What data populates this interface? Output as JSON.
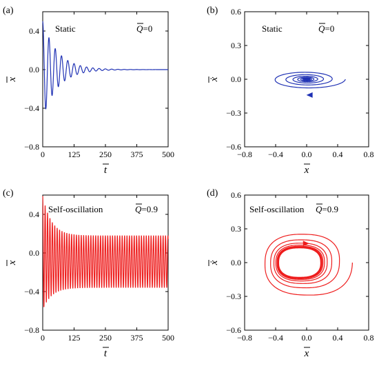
{
  "chart_data": [
    {
      "panel": "(a)",
      "type": "line",
      "label_left": "Static",
      "label_right": "=0",
      "label_right_symbol": "Q",
      "xlabel": "t",
      "ylabel": "x",
      "xlim": [
        0,
        500
      ],
      "ylim": [
        -0.8,
        0.6
      ],
      "xticks": [
        0,
        125,
        250,
        375,
        500
      ],
      "yticks": [
        -0.8,
        -0.4,
        0.0,
        0.4
      ],
      "xtick_labels": [
        "0",
        "125",
        "250",
        "375",
        "500"
      ],
      "ytick_labels": [
        "−0.8",
        "−0.4",
        "0.0",
        "0.4"
      ],
      "color": "#1f31b4",
      "series": [
        {
          "model": "damped-oscillation",
          "x0": 0.5,
          "period": 25,
          "decay_time": 60,
          "t_range": [
            0,
            500
          ]
        }
      ]
    },
    {
      "panel": "(b)",
      "type": "line",
      "label_left": "Static",
      "label_right": "=0",
      "label_right_symbol": "Q",
      "xlabel": "x",
      "ylabel": "ẋ",
      "xlim": [
        -0.8,
        0.8
      ],
      "ylim": [
        -0.6,
        0.6
      ],
      "xticks": [
        -0.8,
        -0.4,
        0.0,
        0.4,
        0.8
      ],
      "yticks": [
        -0.6,
        -0.3,
        0.0,
        0.3,
        0.6
      ],
      "xtick_labels": [
        "−0.8",
        "−0.4",
        "0.0",
        "0.4",
        "0.8"
      ],
      "ytick_labels": [
        "−0.6",
        "−0.3",
        "0.0",
        "0.3",
        "0.6"
      ],
      "color": "#1f31b4",
      "series": [
        {
          "model": "spiral-to-origin",
          "x0": 0.5,
          "v_scale": 0.17,
          "period": 25,
          "decay_time": 60
        }
      ]
    },
    {
      "panel": "(c)",
      "type": "line",
      "label_left": "Self-oscillation",
      "label_right": "=0.9",
      "label_right_symbol": "Q",
      "xlabel": "t",
      "ylabel": "x",
      "xlim": [
        0,
        500
      ],
      "ylim": [
        -0.8,
        0.6
      ],
      "xticks": [
        0,
        125,
        250,
        375,
        500
      ],
      "yticks": [
        -0.8,
        -0.4,
        0.0,
        0.4
      ],
      "xtick_labels": [
        "0",
        "125",
        "250",
        "375",
        "500"
      ],
      "ytick_labels": [
        "−0.8",
        "−0.4",
        "0.0",
        "0.4"
      ],
      "color": "#ee1c1c",
      "series": [
        {
          "model": "limit-cycle-oscillation",
          "x0": 0.5,
          "steady_max": 0.18,
          "steady_min": -0.36,
          "period": 9.6,
          "t_range": [
            0,
            500
          ]
        }
      ]
    },
    {
      "panel": "(d)",
      "type": "line",
      "label_left": "Self-oscillation",
      "label_right": "=0.9",
      "label_right_symbol": "Q",
      "xlabel": "x",
      "ylabel": "ẋ",
      "xlim": [
        -0.8,
        0.8
      ],
      "ylim": [
        -0.6,
        0.6
      ],
      "xticks": [
        -0.8,
        -0.4,
        0.0,
        0.4,
        0.8
      ],
      "yticks": [
        -0.6,
        -0.3,
        0.0,
        0.3,
        0.6
      ],
      "xtick_labels": [
        "−0.8",
        "−0.4",
        "0.0",
        "0.4",
        "0.8"
      ],
      "ytick_labels": [
        "−0.6",
        "−0.3",
        "0.0",
        "0.3",
        "0.6"
      ],
      "color": "#ee1c1c",
      "series": [
        {
          "model": "spiral-to-limit-cycle",
          "x0": 0.5,
          "limit_cycle_x": [
            -0.36,
            0.18
          ],
          "limit_cycle_v": [
            -0.13,
            0.13
          ]
        }
      ]
    }
  ]
}
